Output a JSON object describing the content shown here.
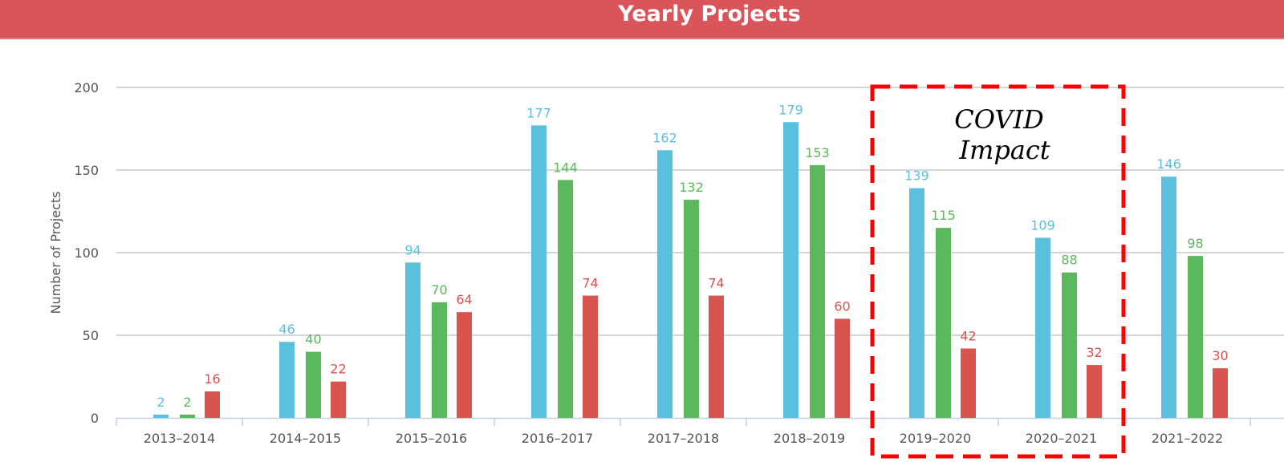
{
  "chart_data": {
    "type": "bar",
    "title": "Yearly Projects",
    "xlabel": "",
    "ylabel": "Number of Projects",
    "ylim": [
      0,
      200
    ],
    "yticks": [
      0,
      50,
      100,
      150,
      200
    ],
    "grid": true,
    "categories": [
      "2013-2014",
      "2014-2015",
      "2015-2016",
      "2016-2017",
      "2017-2018",
      "2018-2019",
      "2019-2020",
      "2020-2021",
      "2021-2022"
    ],
    "series": [
      {
        "color": "#5bc0de",
        "values": [
          2,
          46,
          94,
          177,
          162,
          179,
          139,
          109,
          146
        ]
      },
      {
        "color": "#5cb85c",
        "values": [
          2,
          40,
          70,
          144,
          132,
          153,
          115,
          88,
          98
        ]
      },
      {
        "color": "#d9534f",
        "values": [
          16,
          22,
          64,
          74,
          74,
          60,
          42,
          32,
          30
        ]
      }
    ],
    "annotation": {
      "text_line1": "COVID",
      "text_line2": "Impact",
      "box_color": "#ff0000",
      "categories": [
        "2019-2020",
        "2020-2021"
      ]
    }
  }
}
